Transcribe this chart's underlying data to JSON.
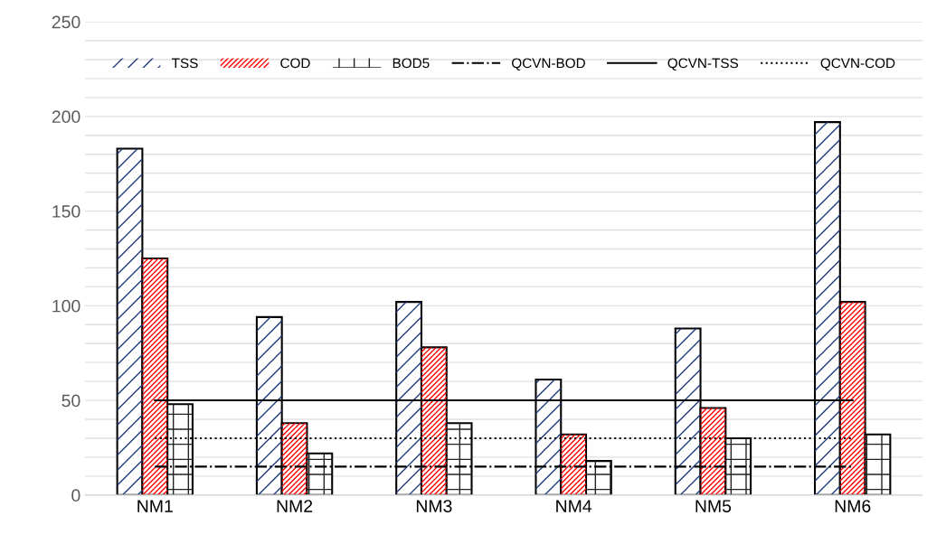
{
  "chart_data": {
    "type": "bar",
    "categories": [
      "NM1",
      "NM2",
      "NM3",
      "NM4",
      "NM5",
      "NM6"
    ],
    "series": [
      {
        "name": "TSS",
        "color": "#1f3a7a",
        "values": [
          183,
          94,
          102,
          61,
          88,
          197
        ]
      },
      {
        "name": "COD",
        "color": "#ff0000",
        "values": [
          125,
          38,
          78,
          32,
          46,
          102
        ]
      },
      {
        "name": "BOD5",
        "color": "#222222",
        "values": [
          48,
          22,
          38,
          18,
          30,
          32
        ]
      },
      {
        "name": "QCVN-BOD",
        "type": "line",
        "color": "#000000",
        "line_style": "dashdot",
        "values": [
          15,
          15,
          15,
          15,
          15,
          15
        ]
      },
      {
        "name": "QCVN-TSS",
        "type": "line",
        "color": "#000000",
        "line_style": "solid",
        "values": [
          50,
          50,
          50,
          50,
          50,
          50
        ]
      },
      {
        "name": "QCVN-COD",
        "type": "line",
        "color": "#000000",
        "line_style": "dotted",
        "values": [
          30,
          30,
          30,
          30,
          30,
          30
        ]
      }
    ],
    "ylim": [
      0,
      250
    ],
    "yticks": [
      0,
      {
        "value": 10,
        "label": null
      },
      {
        "value": 20,
        "label": null
      },
      {
        "value": 30,
        "label": null
      },
      {
        "value": 40,
        "label": null
      },
      50,
      {
        "value": 60,
        "label": null
      },
      {
        "value": 70,
        "label": null
      },
      {
        "value": 80,
        "label": null
      },
      {
        "value": 90,
        "label": null
      },
      100,
      {
        "value": 110,
        "label": null
      },
      {
        "value": 120,
        "label": null
      },
      {
        "value": 130,
        "label": null
      },
      {
        "value": 140,
        "label": null
      },
      150,
      {
        "value": 160,
        "label": null
      },
      {
        "value": 170,
        "label": null
      },
      {
        "value": 180,
        "label": null
      },
      {
        "value": 190,
        "label": null
      },
      200,
      {
        "value": 210,
        "label": null
      },
      {
        "value": 220,
        "label": null
      },
      {
        "value": 230,
        "label": null
      },
      {
        "value": 240,
        "label": null
      },
      250
    ],
    "grid": "y",
    "legend": "top"
  }
}
